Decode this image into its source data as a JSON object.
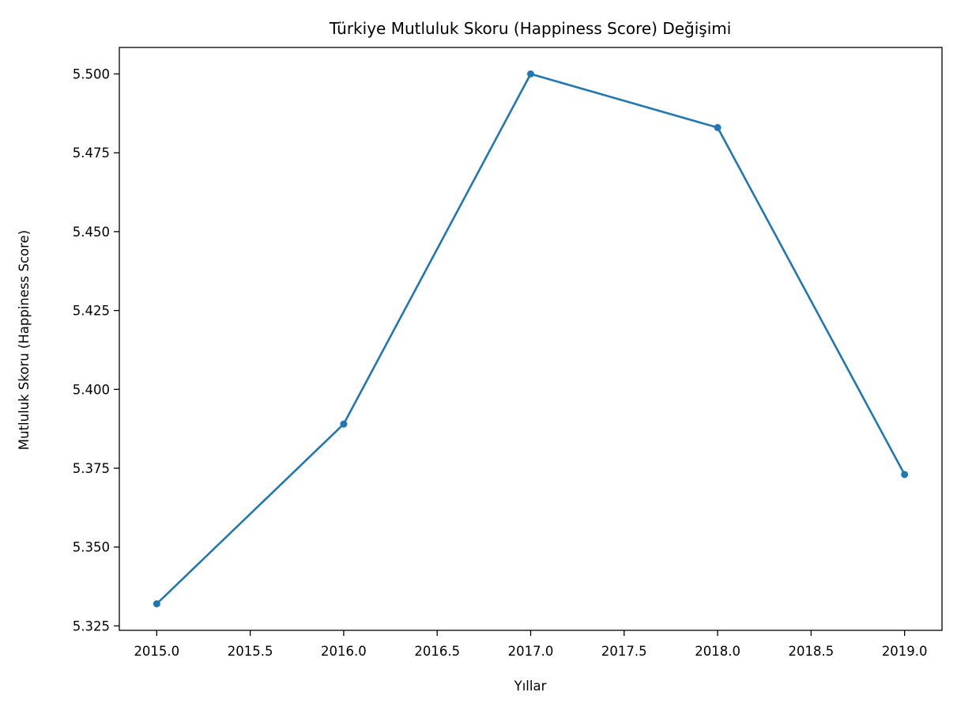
{
  "chart_data": {
    "type": "line",
    "title": "Türkiye Mutluluk Skoru (Happiness Score) Değişimi",
    "xlabel": "Yıllar",
    "ylabel": "Mutluluk Skoru (Happiness Score)",
    "xlim": [
      2014.8,
      2019.2
    ],
    "ylim": [
      5.3236,
      5.5084
    ],
    "x_ticks": [
      2015.0,
      2015.5,
      2016.0,
      2016.5,
      2017.0,
      2017.5,
      2018.0,
      2018.5,
      2019.0
    ],
    "x_tick_labels": [
      "2015.0",
      "2015.5",
      "2016.0",
      "2016.5",
      "2017.0",
      "2017.5",
      "2018.0",
      "2018.5",
      "2019.0"
    ],
    "y_ticks": [
      5.325,
      5.35,
      5.375,
      5.4,
      5.425,
      5.45,
      5.475,
      5.5
    ],
    "y_tick_labels": [
      "5.325",
      "5.350",
      "5.375",
      "5.400",
      "5.425",
      "5.450",
      "5.475",
      "5.500"
    ],
    "grid": false,
    "line_color": "#1f77b4",
    "series": [
      {
        "x": [
          2015,
          2016,
          2017,
          2018,
          2019
        ],
        "values": [
          5.332,
          5.389,
          5.5,
          5.483,
          5.373
        ]
      }
    ]
  }
}
